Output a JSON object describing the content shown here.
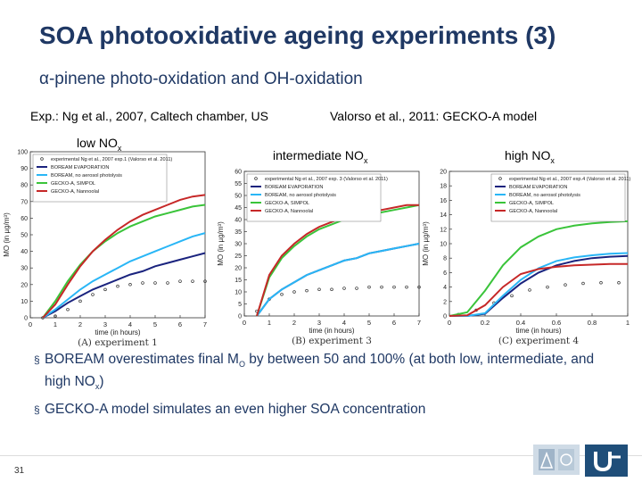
{
  "slide": {
    "title": "SOA photooxidative ageing experiments (3)",
    "subtitle": "α-pinene photo-oxidation and OH-oxidation",
    "exp_note": "Exp.: Ng et al., 2007, Caltech chamber, US",
    "model_note": "Valorso et al., 2011: GECKO-A model",
    "nox_low": "low NO",
    "nox_mid": "intermediate NO",
    "nox_high": "high NO",
    "nox_sub": "x",
    "bullet1_pre": "BOREAM overestimates final M",
    "bullet1_sub": "O",
    "bullet1_mid": " by between 50 and 100% (at both low, intermediate, and high NO",
    "bullet1_sub2": "x",
    "bullet1_post": ")",
    "bullet2": "GECKO-A model simulates an even higher SOA concentration",
    "slide_number": "31"
  },
  "chart_data": [
    {
      "type": "line",
      "caption": "(A) experiment 1",
      "xlabel": "time (in hours)",
      "ylabel": "MO (in µg/m³)",
      "xlim": [
        0,
        7
      ],
      "ylim": [
        0,
        100
      ],
      "xticks": [
        "0",
        "1",
        "2",
        "3",
        "4",
        "5",
        "6",
        "7"
      ],
      "yticks": [
        "0",
        "10",
        "20",
        "30",
        "40",
        "50",
        "60",
        "70",
        "80",
        "90",
        "100"
      ],
      "legend_position": "top-left",
      "series": [
        {
          "name": "experimental Ng et al., 2007 exp.1 (Valorso et al. 2011)",
          "style": "markers",
          "color": "#333333",
          "x": [
            0.5,
            1.0,
            1.5,
            2.0,
            2.5,
            3.0,
            3.5,
            4.0,
            4.5,
            5.0,
            5.5,
            6.0,
            6.5,
            7.0
          ],
          "y": [
            0,
            1,
            5,
            10,
            14,
            17,
            19,
            20,
            21,
            21,
            21,
            22,
            22,
            22
          ]
        },
        {
          "name": "BOREAM EVAPORATION",
          "style": "line",
          "color": "#1a237e",
          "x": [
            0.5,
            1.0,
            1.5,
            2.0,
            2.5,
            3.0,
            3.5,
            4.0,
            4.5,
            5.0,
            5.5,
            6.0,
            6.5,
            7.0
          ],
          "y": [
            0,
            4,
            9,
            13,
            17,
            20,
            23,
            26,
            28,
            31,
            33,
            35,
            37,
            39
          ]
        },
        {
          "name": "BOREAM, no aerosol photolysis",
          "style": "line",
          "color": "#29b6f6",
          "x": [
            0.5,
            1.0,
            1.5,
            2.0,
            2.5,
            3.0,
            3.5,
            4.0,
            4.5,
            5.0,
            5.5,
            6.0,
            6.5,
            7.0
          ],
          "y": [
            0,
            5,
            11,
            17,
            22,
            26,
            30,
            34,
            37,
            40,
            43,
            46,
            49,
            51
          ]
        },
        {
          "name": "GECKO-A, SIMPOL",
          "style": "line",
          "color": "#3ac43a",
          "x": [
            0.5,
            1.0,
            1.5,
            2.0,
            2.5,
            3.0,
            3.5,
            4.0,
            4.5,
            5.0,
            5.5,
            6.0,
            6.5,
            7.0
          ],
          "y": [
            0,
            10,
            22,
            32,
            40,
            46,
            51,
            55,
            58,
            61,
            63,
            65,
            67,
            68
          ]
        },
        {
          "name": "GECKO-A, Nannoolal",
          "style": "line",
          "color": "#c62828",
          "x": [
            0.5,
            1.0,
            1.5,
            2.0,
            2.5,
            3.0,
            3.5,
            4.0,
            4.5,
            5.0,
            5.5,
            6.0,
            6.5,
            7.0
          ],
          "y": [
            0,
            8,
            20,
            31,
            40,
            47,
            53,
            58,
            62,
            65,
            68,
            71,
            73,
            74
          ]
        }
      ]
    },
    {
      "type": "line",
      "caption": "(B) experiment 3",
      "xlabel": "time (in hours)",
      "ylabel": "MO (in µg/m³)",
      "xlim": [
        0,
        7
      ],
      "ylim": [
        0,
        60
      ],
      "xticks": [
        "0",
        "1",
        "2",
        "3",
        "4",
        "5",
        "6",
        "7"
      ],
      "yticks": [
        "0",
        "5",
        "10",
        "15",
        "20",
        "25",
        "30",
        "35",
        "40",
        "45",
        "50",
        "55",
        "60"
      ],
      "legend_position": "top-left",
      "series": [
        {
          "name": "experimental Ng et al., 2007 exp. 3 (Valorso et al. 2011)",
          "style": "markers",
          "color": "#333333",
          "x": [
            0.5,
            1.0,
            1.5,
            2.0,
            2.5,
            3.0,
            3.5,
            4.0,
            4.5,
            5.0,
            5.5,
            6.0,
            6.5,
            7.0
          ],
          "y": [
            2,
            7,
            9,
            10,
            10.5,
            11,
            11,
            11.5,
            11.5,
            12,
            12,
            12,
            12,
            12
          ]
        },
        {
          "name": "BOREAM EVAPORATION",
          "style": "line",
          "color": "#1a237e",
          "x": [
            0.5,
            1.0,
            1.5,
            2.0,
            2.5,
            3.0,
            3.5,
            4.0,
            4.5,
            5.0,
            5.5,
            6.0,
            6.5,
            7.0
          ],
          "y": [
            0,
            7,
            11,
            14,
            17,
            19,
            21,
            23,
            24,
            26,
            27,
            28,
            29,
            30
          ]
        },
        {
          "name": "BOREAM, no aerosol photolysis",
          "style": "line",
          "color": "#29b6f6",
          "x": [
            0.5,
            1.0,
            1.5,
            2.0,
            2.5,
            3.0,
            3.5,
            4.0,
            4.5,
            5.0,
            5.5,
            6.0,
            6.5,
            7.0
          ],
          "y": [
            0,
            7,
            11,
            14,
            17,
            19,
            21,
            23,
            24,
            26,
            27,
            28,
            29,
            30
          ]
        },
        {
          "name": "GECKO-A, SIMPOL",
          "style": "line",
          "color": "#3ac43a",
          "x": [
            0.5,
            1.0,
            1.5,
            2.0,
            2.5,
            3.0,
            3.5,
            4.0,
            4.5,
            5.0,
            5.5,
            6.0,
            6.5,
            7.0
          ],
          "y": [
            0,
            16,
            24,
            29,
            33,
            36,
            38,
            40,
            41,
            42,
            43,
            44,
            45,
            46
          ]
        },
        {
          "name": "GECKO-A, Nannoolal",
          "style": "line",
          "color": "#c62828",
          "x": [
            0.5,
            1.0,
            1.5,
            2.0,
            2.5,
            3.0,
            3.5,
            4.0,
            4.5,
            5.0,
            5.5,
            6.0,
            6.5,
            7.0
          ],
          "y": [
            0,
            17,
            25,
            30,
            34,
            37,
            39,
            41,
            42,
            43,
            44,
            45,
            46,
            46
          ]
        }
      ]
    },
    {
      "type": "line",
      "caption": "(C) experiment 4",
      "xlabel": "time (in hours)",
      "ylabel": "MO (in µg/m³)",
      "xlim": [
        0,
        1
      ],
      "ylim": [
        0,
        20
      ],
      "xticks": [
        "0",
        "0.2",
        "0.4",
        "0.6",
        "0.8",
        "1"
      ],
      "yticks": [
        "0",
        "2",
        "4",
        "6",
        "8",
        "10",
        "12",
        "14",
        "16",
        "18",
        "20"
      ],
      "legend_position": "top-right",
      "series": [
        {
          "name": "experimental Ng et al., 2007 exp.4 (Valorso et al. 2011)",
          "style": "markers",
          "color": "#333333",
          "x": [
            0.05,
            0.15,
            0.25,
            0.35,
            0.45,
            0.55,
            0.65,
            0.75,
            0.85,
            0.95
          ],
          "y": [
            0.2,
            0.8,
            1.8,
            2.8,
            3.6,
            4.0,
            4.3,
            4.5,
            4.6,
            4.6
          ]
        },
        {
          "name": "BOREAM EVAPORATION",
          "style": "line",
          "color": "#1a237e",
          "x": [
            0,
            0.1,
            0.2,
            0.3,
            0.4,
            0.5,
            0.6,
            0.7,
            0.8,
            0.9,
            1.0
          ],
          "y": [
            0,
            0,
            0.3,
            2.5,
            4.5,
            6.0,
            7.0,
            7.6,
            8.0,
            8.2,
            8.3
          ]
        },
        {
          "name": "BOREAM, no aerosol photolysis",
          "style": "line",
          "color": "#29b6f6",
          "x": [
            0,
            0.1,
            0.2,
            0.3,
            0.4,
            0.5,
            0.6,
            0.7,
            0.8,
            0.9,
            1.0
          ],
          "y": [
            0,
            0,
            0.4,
            2.8,
            5.0,
            6.6,
            7.6,
            8.1,
            8.4,
            8.6,
            8.7
          ]
        },
        {
          "name": "GECKO-A, SIMPOL",
          "style": "line",
          "color": "#3ac43a",
          "x": [
            0,
            0.1,
            0.2,
            0.3,
            0.4,
            0.5,
            0.6,
            0.7,
            0.8,
            0.9,
            1.0
          ],
          "y": [
            0,
            0.5,
            3.5,
            7.0,
            9.5,
            11.0,
            12.0,
            12.5,
            12.8,
            13.0,
            13.1
          ]
        },
        {
          "name": "GECKO-A, Nannoolal",
          "style": "line",
          "color": "#c62828",
          "x": [
            0,
            0.1,
            0.2,
            0.3,
            0.4,
            0.5,
            0.6,
            0.7,
            0.8,
            0.9,
            1.0
          ],
          "y": [
            0,
            0.1,
            1.5,
            4.0,
            5.8,
            6.5,
            6.8,
            7.0,
            7.1,
            7.2,
            7.2
          ]
        }
      ]
    }
  ]
}
